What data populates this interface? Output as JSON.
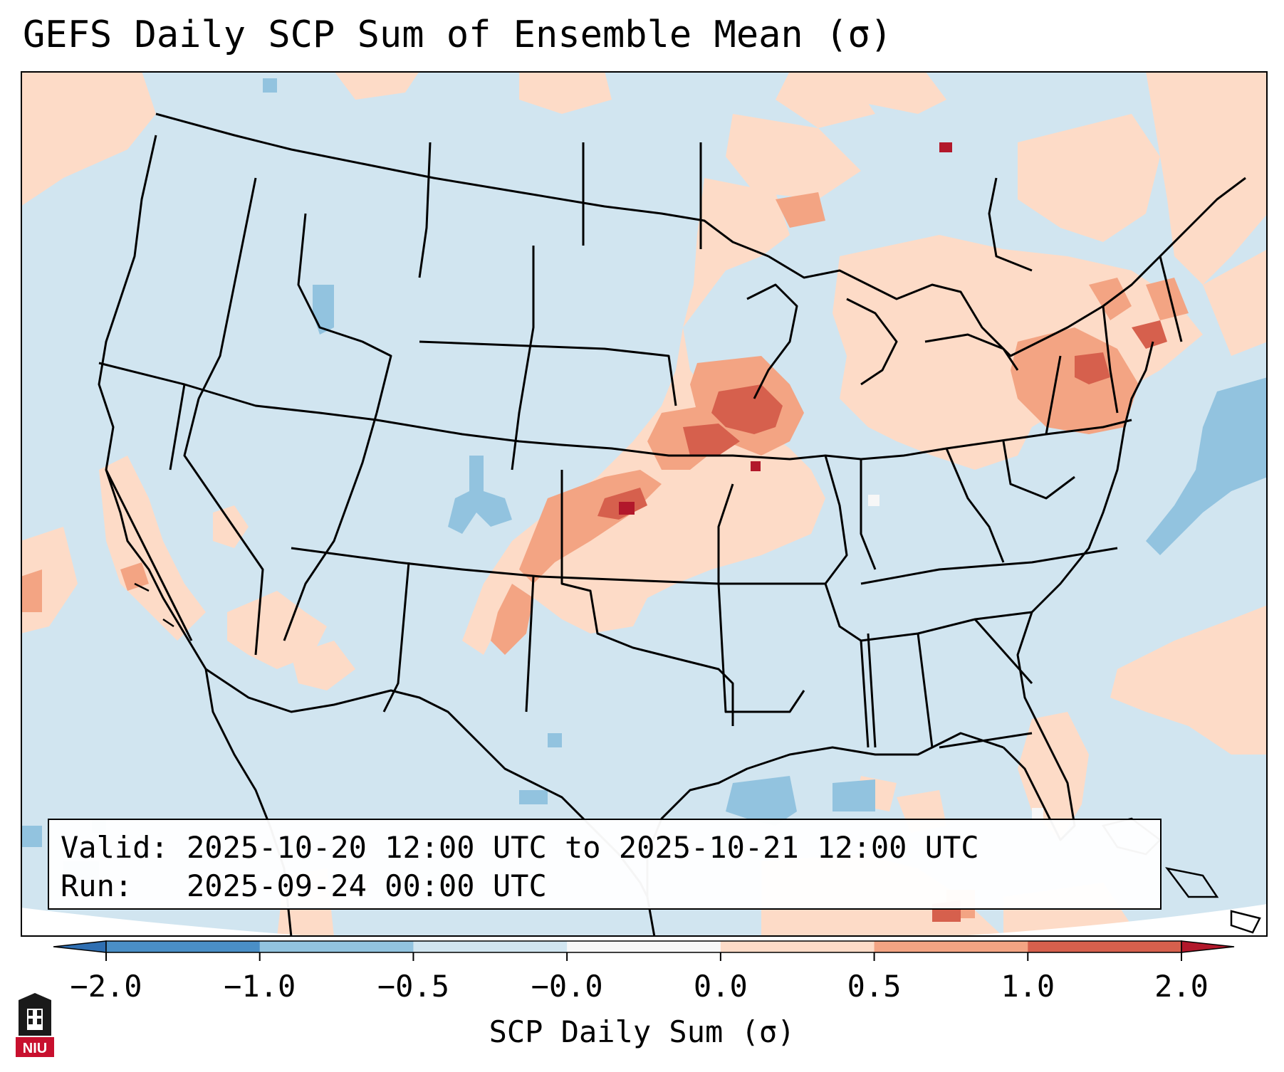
{
  "title": "GEFS Daily SCP Sum of Ensemble Mean (σ)",
  "info": {
    "valid_label": "Valid:",
    "valid_value": "2025-10-20 12:00 UTC to 2025-10-21 12:00 UTC",
    "run_label": "Run:",
    "run_value": "2025-09-24 00:00 UTC"
  },
  "colorbar": {
    "label": "SCP Daily Sum (σ)",
    "ticks": [
      "−2.0",
      "−1.0",
      "−0.5",
      "−0.0",
      "0.0",
      "0.5",
      "1.0",
      "2.0"
    ],
    "bins": [
      {
        "color": "#4a8fc6"
      },
      {
        "color": "#92c3df"
      },
      {
        "color": "#d1e5f0"
      },
      {
        "color": "#f7f7f7"
      },
      {
        "color": "#fddbc7"
      },
      {
        "color": "#f3a483"
      },
      {
        "color": "#d6604d"
      }
    ],
    "under_color": "#2f6fb2",
    "over_color": "#b2182b"
  },
  "map": {
    "background_color": "#d1e5f0",
    "outside_color": "#ffffff",
    "border_color": "#000000",
    "features": [
      {
        "name": "plains-corridor",
        "level": 1.0
      },
      {
        "name": "iowa-core",
        "level": 1.5
      },
      {
        "name": "kansas-core",
        "level": 2.0
      },
      {
        "name": "northeast-band",
        "level": 1.0
      },
      {
        "name": "colorado-dip",
        "level": -0.75
      },
      {
        "name": "atlantic-dip",
        "level": -0.75
      },
      {
        "name": "gulf-dip",
        "level": -0.75
      }
    ]
  },
  "logo": {
    "text": "NIU"
  }
}
